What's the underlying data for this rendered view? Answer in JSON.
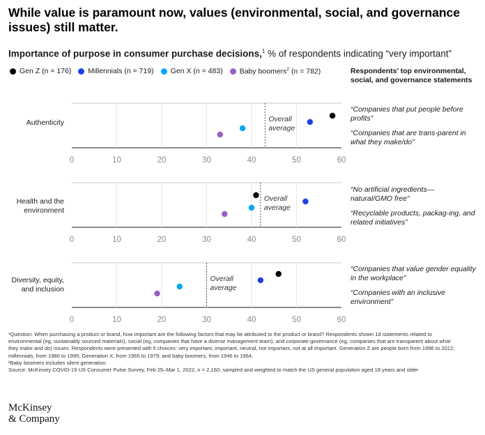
{
  "title": "While value is paramount now, values (environmental, social, and governance issues) still matter.",
  "subtitle": {
    "bold": "Importance of purpose in consumer purchase decisions,",
    "sup": "1",
    "rest": " % of respondents indicating “very important”"
  },
  "legend": [
    {
      "label": "Gen Z (n = 176)",
      "sup": "",
      "color": "#000000"
    },
    {
      "label": "Millennials (n = 719)",
      "sup": "",
      "color": "#1f40e6"
    },
    {
      "label": "Gen X (n = 483)",
      "sup": "",
      "color": "#00a9f4"
    },
    {
      "label": "Baby boomers",
      "sup": "2",
      "suffix": " (n = 782)",
      "color": "#9b5fc7"
    }
  ],
  "respondents_header": "Respondents’ top environmental, social, and governance statements",
  "chart_data": {
    "type": "scatter",
    "xlim": [
      0,
      60
    ],
    "ticks": [
      "0",
      "10",
      "20",
      "30",
      "40",
      "50",
      "60"
    ],
    "average_label": [
      "Overall",
      "average"
    ],
    "series_colors": [
      "#000000",
      "#1f40e6",
      "#00a9f4",
      "#9b5fc7"
    ],
    "panels": [
      {
        "label": [
          "Authenticity"
        ],
        "values": {
          "gen_z": 58,
          "millennials": 53,
          "gen_x": 38,
          "boomers": 33
        },
        "average": 43,
        "quotes": [
          "“Companies that put people before profits”",
          "“Companies that are trans-parent in what they make/do”"
        ]
      },
      {
        "label": [
          "Health and the",
          "environment"
        ],
        "values": {
          "gen_z": 41,
          "millennials": 52,
          "gen_x": 40,
          "boomers": 34
        },
        "average": 42,
        "quotes": [
          "“No artificial ingredients—natural/GMO free”",
          "“Recyclable products, packag-ing, and related initiatives”"
        ]
      },
      {
        "label": [
          "Diversity, equity,",
          "and inclusion"
        ],
        "values": {
          "gen_z": 46,
          "millennials": 42,
          "gen_x": 24,
          "boomers": 19
        },
        "average": 30,
        "quotes": [
          "“Companies that value gender equality in the workplace”",
          "“Companies with an inclusive environment”"
        ]
      }
    ]
  },
  "footnotes": [
    "¹Question: When purchasing a product or brand, how important are the following factors that may be attributed to the product or brand? Respondents shown 18 statements related to environmental (eg, sustainably sourced materials), social (eg, companies that have a diverse management team), and corporate-governance (eg, companies that are transparent about what they make and do) issues. Respondents were presented with 5 choices: very important, important, neutral, not important, not at all important. Generation Z are people born from 1996 to 2012; millennials, from 1980 to 1995; Generation X, from 1965 to 1979; and baby boomers, from 1946 to 1964.",
    "²Baby boomers includes silent generation.",
    "Source: McKinsey COVID-19 US Consumer Pulse Survey, Feb 25–Mar 1, 2022, n = 2,160; sampled and weighted to match the US general population aged 18 years and older"
  ],
  "logo": [
    "McKinsey",
    "& Company"
  ]
}
